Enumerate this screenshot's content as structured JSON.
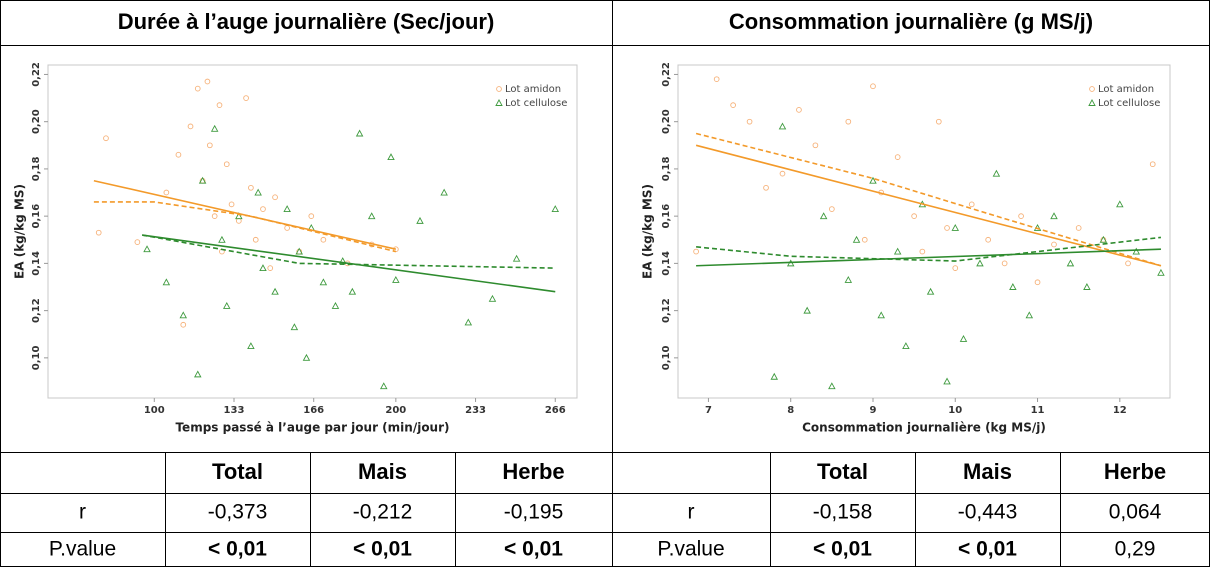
{
  "tables": [
    {
      "title": "Durée à l’auge journalière (Sec/jour)",
      "columns": [
        "Total",
        "Mais",
        "Herbe"
      ],
      "rows": [
        [
          "r",
          "-0,373",
          "-0,212",
          "-0,195"
        ],
        [
          "P.value",
          "< 0,01",
          "< 0,01",
          "< 0,01"
        ]
      ]
    },
    {
      "title": "Consommation journalière (g MS/j)",
      "columns": [
        "Total",
        "Mais",
        "Herbe"
      ],
      "rows": [
        [
          "r",
          "-0,158",
          "-0,443",
          "0,064"
        ],
        [
          "P.value",
          "< 0,01",
          "< 0,01",
          "0,29"
        ]
      ]
    }
  ],
  "chart_data": [
    {
      "type": "scatter",
      "x_label": "Temps passé à l’auge par jour (min/jour)",
      "y_label": "EA (kg/kg MS)",
      "xlim": [
        56,
        275
      ],
      "ylim": [
        0.083,
        0.224
      ],
      "xticks": [
        100,
        133,
        166,
        200,
        233,
        266
      ],
      "yticks": [
        {
          "value": 0.1,
          "label": "0,10"
        },
        {
          "value": 0.12,
          "label": "0,12"
        },
        {
          "value": 0.14,
          "label": "0,14"
        },
        {
          "value": 0.16,
          "label": "0,16"
        },
        {
          "value": 0.18,
          "label": "0,18"
        },
        {
          "value": 0.2,
          "label": "0,20"
        },
        {
          "value": 0.22,
          "label": "0,22"
        }
      ],
      "grid": false,
      "legend": "top-right",
      "series": [
        {
          "name": "Lot amidon",
          "color": "#f6b27a",
          "marker": "circle",
          "x": [
            77,
            80,
            93,
            105,
            110,
            112,
            115,
            118,
            120,
            122,
            123,
            125,
            127,
            128,
            130,
            132,
            135,
            138,
            140,
            142,
            145,
            148,
            150,
            155,
            160,
            165,
            170,
            180,
            190,
            200
          ],
          "values": [
            0.153,
            0.193,
            0.149,
            0.17,
            0.186,
            0.114,
            0.198,
            0.214,
            0.175,
            0.217,
            0.19,
            0.16,
            0.207,
            0.145,
            0.182,
            0.165,
            0.158,
            0.21,
            0.172,
            0.15,
            0.163,
            0.138,
            0.168,
            0.155,
            0.145,
            0.16,
            0.15,
            0.14,
            0.148,
            0.146
          ]
        },
        {
          "name": "Lot cellulose",
          "color": "#3f9a3f",
          "marker": "triangle",
          "x": [
            97,
            105,
            112,
            118,
            120,
            125,
            128,
            130,
            135,
            140,
            143,
            145,
            150,
            155,
            158,
            160,
            163,
            165,
            170,
            175,
            178,
            182,
            185,
            190,
            195,
            198,
            200,
            210,
            220,
            230,
            240,
            250,
            266
          ],
          "values": [
            0.146,
            0.132,
            0.118,
            0.093,
            0.175,
            0.197,
            0.15,
            0.122,
            0.16,
            0.105,
            0.17,
            0.138,
            0.128,
            0.163,
            0.113,
            0.145,
            0.1,
            0.155,
            0.132,
            0.122,
            0.141,
            0.128,
            0.195,
            0.16,
            0.088,
            0.185,
            0.133,
            0.158,
            0.17,
            0.115,
            0.125,
            0.142,
            0.163
          ]
        }
      ],
      "trend_lines": [
        {
          "color": "#f39a2a",
          "dash": false,
          "x": [
            75,
            200
          ],
          "values": [
            0.175,
            0.146
          ]
        },
        {
          "color": "#f39a2a",
          "dash": true,
          "x": [
            75,
            100,
            140,
            200
          ],
          "values": [
            0.166,
            0.166,
            0.16,
            0.145
          ]
        },
        {
          "color": "#2e8b2e",
          "dash": false,
          "x": [
            95,
            266
          ],
          "values": [
            0.152,
            0.128
          ]
        },
        {
          "color": "#2e8b2e",
          "dash": true,
          "x": [
            95,
            160,
            266
          ],
          "values": [
            0.152,
            0.14,
            0.138
          ]
        }
      ]
    },
    {
      "type": "scatter",
      "x_label": "Consommation journalière (kg MS/j)",
      "y_label": "EA (kg/kg MS)",
      "xlim": [
        6.63,
        12.61
      ],
      "ylim": [
        0.083,
        0.224
      ],
      "xticks": [
        7,
        8,
        9,
        10,
        11,
        12
      ],
      "yticks": [
        {
          "value": 0.1,
          "label": "0,10"
        },
        {
          "value": 0.12,
          "label": "0,12"
        },
        {
          "value": 0.14,
          "label": "0,14"
        },
        {
          "value": 0.16,
          "label": "0,16"
        },
        {
          "value": 0.18,
          "label": "0,18"
        },
        {
          "value": 0.2,
          "label": "0,20"
        },
        {
          "value": 0.22,
          "label": "0,22"
        }
      ],
      "grid": false,
      "legend": "top-right",
      "series": [
        {
          "name": "Lot amidon",
          "color": "#f6b27a",
          "marker": "circle",
          "x": [
            6.85,
            7.1,
            7.3,
            7.5,
            7.7,
            7.9,
            8.1,
            8.3,
            8.5,
            8.7,
            8.9,
            9.0,
            9.1,
            9.3,
            9.5,
            9.6,
            9.8,
            9.9,
            10.0,
            10.2,
            10.4,
            10.6,
            10.8,
            11.0,
            11.2,
            11.5,
            11.8,
            12.1,
            12.4
          ],
          "values": [
            0.145,
            0.218,
            0.207,
            0.2,
            0.172,
            0.178,
            0.205,
            0.19,
            0.163,
            0.2,
            0.15,
            0.215,
            0.17,
            0.185,
            0.16,
            0.145,
            0.2,
            0.155,
            0.138,
            0.165,
            0.15,
            0.14,
            0.16,
            0.132,
            0.148,
            0.155,
            0.15,
            0.14,
            0.182
          ]
        },
        {
          "name": "Lot cellulose",
          "color": "#3f9a3f",
          "marker": "triangle",
          "x": [
            7.8,
            7.9,
            8.0,
            8.2,
            8.4,
            8.5,
            8.7,
            8.8,
            9.0,
            9.1,
            9.3,
            9.4,
            9.6,
            9.7,
            9.9,
            10.0,
            10.1,
            10.3,
            10.5,
            10.7,
            10.9,
            11.0,
            11.2,
            11.4,
            11.6,
            11.8,
            12.0,
            12.2,
            12.5
          ],
          "values": [
            0.092,
            0.198,
            0.14,
            0.12,
            0.16,
            0.088,
            0.133,
            0.15,
            0.175,
            0.118,
            0.145,
            0.105,
            0.165,
            0.128,
            0.09,
            0.155,
            0.108,
            0.14,
            0.178,
            0.13,
            0.118,
            0.155,
            0.16,
            0.14,
            0.13,
            0.15,
            0.165,
            0.145,
            0.136
          ]
        }
      ],
      "trend_lines": [
        {
          "color": "#f39a2a",
          "dash": false,
          "x": [
            6.85,
            12.5
          ],
          "values": [
            0.19,
            0.139
          ]
        },
        {
          "color": "#f39a2a",
          "dash": true,
          "x": [
            6.85,
            9,
            10.5,
            12.5
          ],
          "values": [
            0.195,
            0.176,
            0.16,
            0.139
          ]
        },
        {
          "color": "#2e8b2e",
          "dash": false,
          "x": [
            6.85,
            12.5
          ],
          "values": [
            0.139,
            0.146
          ]
        },
        {
          "color": "#2e8b2e",
          "dash": true,
          "x": [
            6.85,
            8,
            10,
            12.5
          ],
          "values": [
            0.147,
            0.143,
            0.141,
            0.151
          ]
        }
      ]
    }
  ]
}
